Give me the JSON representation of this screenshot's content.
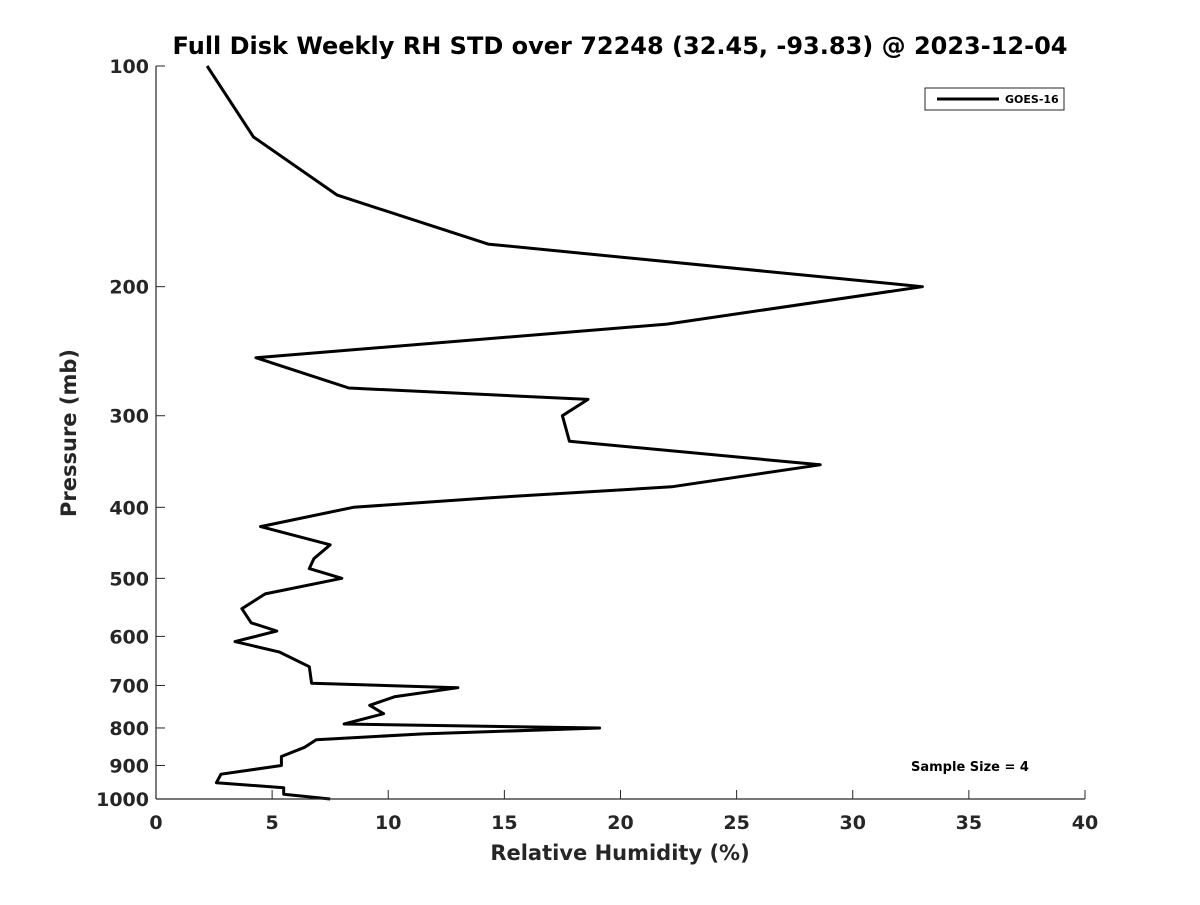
{
  "chart_data": {
    "type": "line",
    "title": "Full Disk Weekly RH STD over 72248 (32.45, -93.83) @ 2023-12-04",
    "xlabel": "Relative Humidity (%)",
    "ylabel": "Pressure (mb)",
    "xlim": [
      0,
      40
    ],
    "ylim": [
      100,
      1000
    ],
    "y_scale": "log",
    "y_inverted": true,
    "x_ticks": [
      0,
      5,
      10,
      15,
      20,
      25,
      30,
      35,
      40
    ],
    "y_ticks": [
      100,
      200,
      300,
      400,
      500,
      600,
      700,
      800,
      900,
      1000
    ],
    "grid": false,
    "legend_position": "top-right",
    "annotation": "Sample Size = 4",
    "series": [
      {
        "name": "GOES-16",
        "color": "#000000",
        "points": [
          [
            2.2,
            100
          ],
          [
            4.2,
            125
          ],
          [
            7.8,
            150
          ],
          [
            14.3,
            175
          ],
          [
            33.0,
            200
          ],
          [
            22.0,
            225
          ],
          [
            4.3,
            250
          ],
          [
            8.3,
            275
          ],
          [
            18.6,
            285
          ],
          [
            17.5,
            300
          ],
          [
            17.8,
            325
          ],
          [
            28.6,
            350
          ],
          [
            22.2,
            375
          ],
          [
            14.5,
            388
          ],
          [
            8.5,
            400
          ],
          [
            4.5,
            425
          ],
          [
            7.5,
            450
          ],
          [
            6.8,
            470
          ],
          [
            6.6,
            485
          ],
          [
            8.0,
            500
          ],
          [
            4.7,
            525
          ],
          [
            3.7,
            550
          ],
          [
            4.1,
            575
          ],
          [
            5.2,
            590
          ],
          [
            3.4,
            610
          ],
          [
            5.3,
            630
          ],
          [
            6.6,
            660
          ],
          [
            6.7,
            695
          ],
          [
            13.0,
            705
          ],
          [
            10.3,
            725
          ],
          [
            9.2,
            745
          ],
          [
            9.8,
            765
          ],
          [
            8.1,
            790
          ],
          [
            19.1,
            800
          ],
          [
            11.5,
            815
          ],
          [
            6.9,
            830
          ],
          [
            6.4,
            850
          ],
          [
            5.4,
            875
          ],
          [
            5.4,
            900
          ],
          [
            2.8,
            925
          ],
          [
            2.6,
            950
          ],
          [
            5.5,
            965
          ],
          [
            5.5,
            985
          ],
          [
            7.5,
            1000
          ]
        ]
      }
    ]
  }
}
